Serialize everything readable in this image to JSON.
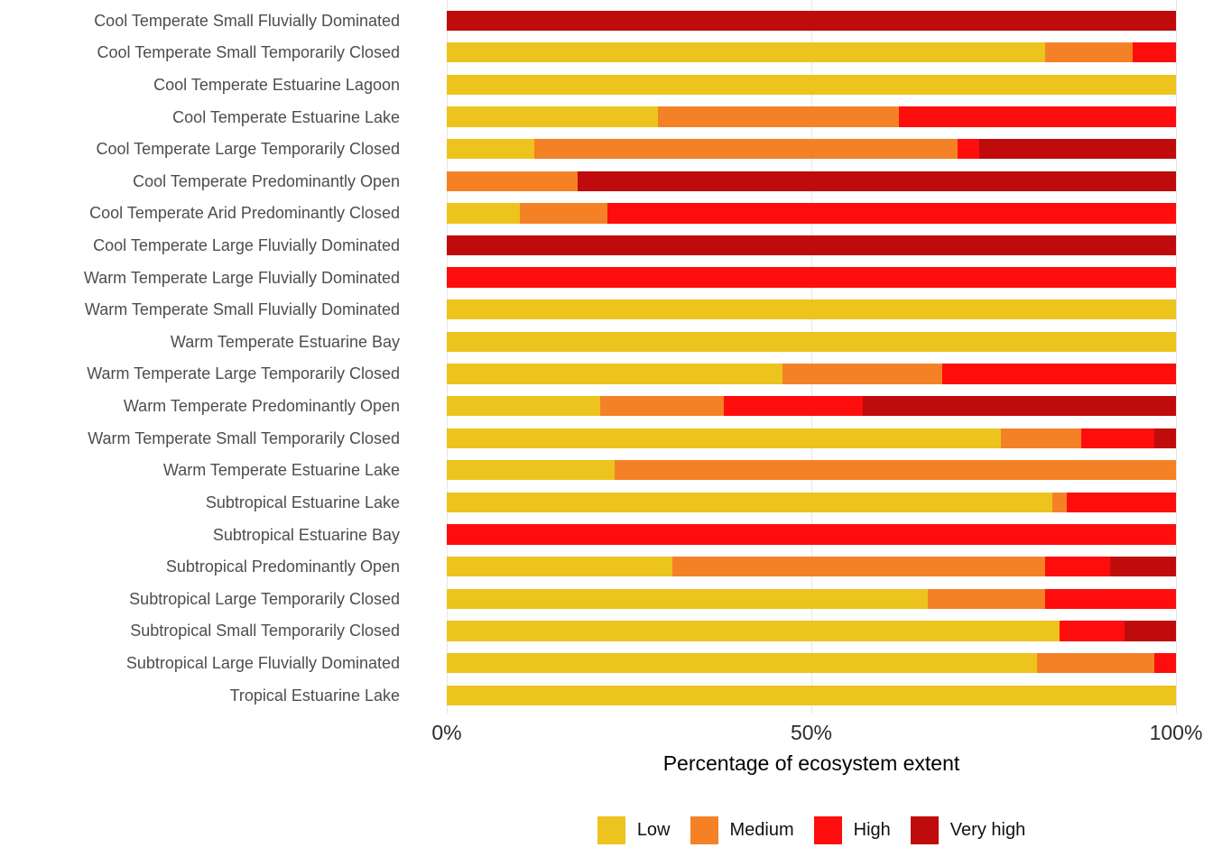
{
  "chart_data": {
    "type": "bar",
    "orientation": "horizontal",
    "stacked": true,
    "title": "",
    "xlabel": "Percentage of ecosystem extent",
    "ylabel": "",
    "xlim": [
      0,
      100
    ],
    "grid": "vertical-major-only",
    "legend_position": "bottom",
    "x_ticks": [
      {
        "label": "0%",
        "value": 0
      },
      {
        "label": "50%",
        "value": 50
      },
      {
        "label": "100%",
        "value": 100
      }
    ],
    "categories": [
      "Cool Temperate Small Fluvially Dominated",
      "Cool Temperate Small Temporarily Closed",
      "Cool Temperate Estuarine Lagoon",
      "Cool Temperate Estuarine Lake",
      "Cool Temperate Large Temporarily Closed",
      "Cool Temperate Predominantly Open",
      "Cool Temperate Arid Predominantly Closed",
      "Cool Temperate Large Fluvially Dominated",
      "Warm Temperate Large Fluvially Dominated",
      "Warm Temperate Small Fluvially Dominated",
      "Warm Temperate Estuarine Bay",
      "Warm Temperate Large Temporarily Closed",
      "Warm Temperate Predominantly Open",
      "Warm Temperate Small Temporarily Closed",
      "Warm Temperate Estuarine Lake",
      "Subtropical Estuarine Lake",
      "Subtropical Estuarine Bay",
      "Subtropical Predominantly Open",
      "Subtropical Large Temporarily Closed",
      "Subtropical Small Temporarily Closed",
      "Subtropical Large Fluvially Dominated",
      "Tropical Estuarine Lake"
    ],
    "series": [
      {
        "name": "Low",
        "color": "#EDC31D",
        "values": [
          0,
          82,
          100,
          29,
          12,
          0,
          10,
          0,
          0,
          100,
          100,
          46,
          21,
          76,
          23,
          83,
          0,
          31,
          66,
          84,
          81,
          100
        ]
      },
      {
        "name": "Medium",
        "color": "#F58126",
        "values": [
          0,
          12,
          0,
          33,
          58,
          18,
          12,
          0,
          0,
          0,
          0,
          22,
          17,
          11,
          77,
          2,
          0,
          51,
          16,
          0,
          16,
          0
        ]
      },
      {
        "name": "High",
        "color": "#FE0D0D",
        "values": [
          0,
          6,
          0,
          38,
          3,
          0,
          78,
          0,
          100,
          0,
          0,
          32,
          19,
          10,
          0,
          15,
          100,
          9,
          18,
          9,
          3,
          0
        ]
      },
      {
        "name": "Very high",
        "color": "#BF0B0B",
        "values": [
          100,
          0,
          0,
          0,
          27,
          82,
          0,
          100,
          0,
          0,
          0,
          0,
          43,
          3,
          0,
          0,
          0,
          9,
          0,
          7,
          0,
          0
        ]
      }
    ]
  },
  "colors": {
    "background": "#FFFFFF",
    "gridline": "#E6E6E6",
    "category_label": "#4D4D4D",
    "tick_label": "#2B2B2B",
    "axis_title": "#000000",
    "legend_label": "#111111"
  }
}
